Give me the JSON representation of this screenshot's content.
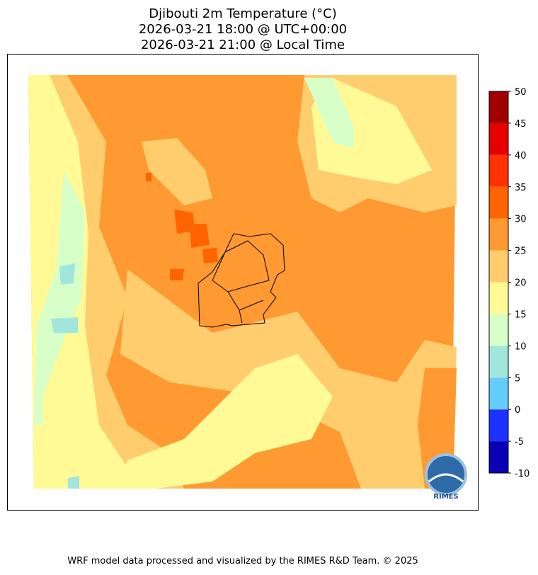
{
  "title": [
    "Djibouti 2m Temperature (°C)",
    "2026-03-21 18:00 @ UTC+00:00",
    "2026-03-21 21:00 @ Local Time"
  ],
  "colorbar": {
    "lim": [
      -10,
      50
    ],
    "ticks": [
      -10,
      -5,
      0,
      5,
      10,
      15,
      20,
      25,
      30,
      35,
      40,
      45,
      50
    ],
    "colors": [
      "#0a00b4",
      "#1e32ff",
      "#65cdfb",
      "#a0e6dc",
      "#d7ffc8",
      "#fffa96",
      "#ffcd6e",
      "#ff9a32",
      "#ff6400",
      "#ff3200",
      "#e60000",
      "#a00000"
    ]
  },
  "logo": "RIMES",
  "footer": "WRF model data processed and visualized by the RIMES R&D Team. © 2025"
}
